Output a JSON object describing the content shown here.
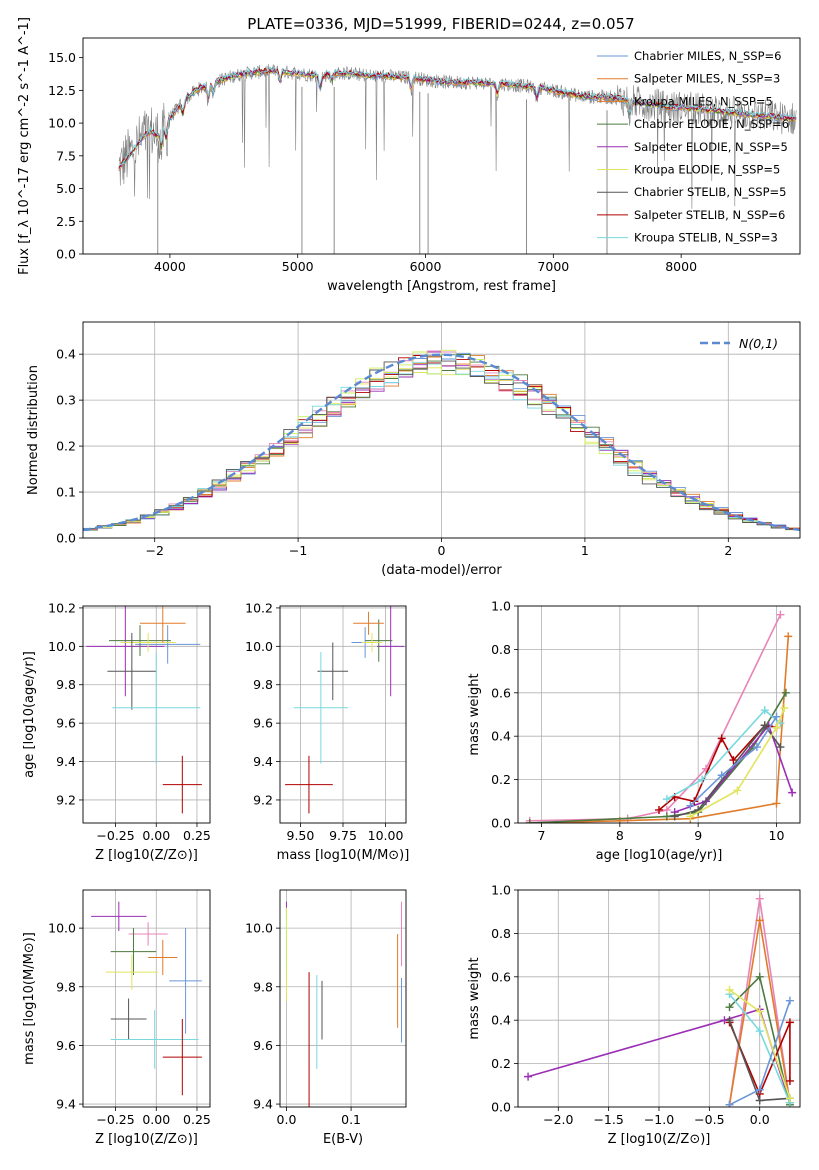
{
  "figure": {
    "title": "PLATE=0336, MJD=51999, FIBERID=0244, z=0.057"
  },
  "colors": {
    "c1": "#6a96d8",
    "c2": "#e07b2a",
    "c3": "#4b7a3e",
    "c4": "#9a2fb5",
    "c5": "#e2e45e",
    "c6": "#555555",
    "c7": "#b00000",
    "c8": "#79d8dd",
    "c9": "#e884b8",
    "c10": "#c8f05a",
    "grey": "#808080"
  },
  "chart_data": [
    {
      "id": "spectrum",
      "type": "line",
      "title": "PLATE=0336, MJD=51999, FIBERID=0244, z=0.057",
      "xlabel": "wavelength [Angstrom, rest frame]",
      "ylabel": "Flux [f_λ 10^-17 erg cm^-2 s^-1 A^-1]",
      "xlim": [
        3320,
        8930
      ],
      "ylim": [
        0,
        16.5
      ],
      "xticks": [
        "4000",
        "5000",
        "6000",
        "7000",
        "8000"
      ],
      "yticks": [
        "0.0",
        "2.5",
        "5.0",
        "7.5",
        "10.0",
        "12.5",
        "15.0"
      ],
      "continuum": {
        "x": [
          3600,
          3650,
          3700,
          3750,
          3800,
          3850,
          3900,
          3950,
          4000,
          4100,
          4200,
          4300,
          4400,
          4500,
          4600,
          4700,
          4800,
          4900,
          5000,
          5100,
          5200,
          5300,
          5400,
          5500,
          5600,
          5700,
          5800,
          5900,
          6000,
          6100,
          6200,
          6300,
          6400,
          6500,
          6600,
          6700,
          6800,
          6900,
          7000,
          7100,
          7200,
          7300,
          7400,
          7500,
          7600,
          7700,
          7800,
          7900,
          8000,
          8100,
          8200,
          8300,
          8400,
          8500,
          8600,
          8700,
          8800,
          8900
        ],
        "y": [
          6.5,
          7.2,
          7.8,
          8.4,
          9.0,
          9.4,
          9.0,
          9.8,
          10.4,
          11.6,
          12.5,
          12.9,
          13.3,
          13.6,
          13.8,
          13.9,
          14.0,
          13.9,
          13.8,
          13.7,
          13.6,
          13.8,
          13.8,
          13.7,
          13.6,
          13.6,
          13.5,
          13.5,
          13.3,
          13.2,
          13.1,
          13.1,
          13.1,
          13.0,
          13.0,
          12.9,
          12.8,
          12.7,
          12.5,
          12.3,
          12.1,
          12.0,
          12.0,
          11.9,
          11.7,
          11.5,
          11.4,
          11.2,
          11.2,
          11.1,
          11.0,
          10.9,
          10.8,
          10.7,
          10.6,
          10.5,
          10.4,
          10.3
        ]
      },
      "legend": [
        "Chabrier MILES, N_SSP=6",
        "Salpeter MILES, N_SSP=3",
        "Kroupa MILES, N_SSP=5",
        "Chabrier ELODIE, N_SSP=6",
        "Salpeter ELODIE, N_SSP=5",
        "Kroupa ELODIE, N_SSP=5",
        "Chabrier STELIB, N_SSP=5",
        "Salpeter STELIB, N_SSP=6",
        "Kroupa STELIB, N_SSP=3"
      ],
      "legend_colors": [
        "c1",
        "c2",
        "c2",
        "c3",
        "c4",
        "c5",
        "c6",
        "c7",
        "c8"
      ]
    },
    {
      "id": "residuals",
      "type": "line",
      "xlabel": "(data-model)/error",
      "ylabel": "Normed distribution",
      "xlim": [
        -2.5,
        2.5
      ],
      "ylim": [
        0,
        0.47
      ],
      "xticks": [
        "−2",
        "−1",
        "0",
        "1",
        "2"
      ],
      "yticks": [
        "0.0",
        "0.1",
        "0.2",
        "0.3",
        "0.4"
      ],
      "legend": "N(0,1)"
    },
    {
      "id": "age-vs-z",
      "type": "scatter",
      "xlabel": "Z [log10(Z/Z⊙)]",
      "ylabel": "age [log10(age/yr)]",
      "xlim": [
        -0.45,
        0.33
      ],
      "ylim": [
        9.08,
        10.21
      ],
      "xticks": [
        "−0.25",
        "0.00",
        "0.25"
      ],
      "yticks": [
        "9.2",
        "9.4",
        "9.6",
        "9.8",
        "10.0",
        "10.2"
      ],
      "points": [
        {
          "c": "c1",
          "x": 0.07,
          "y": 10.01,
          "xe": 0.2,
          "ye": 0.1
        },
        {
          "c": "c4",
          "x": -0.19,
          "y": 10.0,
          "xe": 0.24,
          "ye": 0.26
        },
        {
          "c": "c3",
          "x": -0.1,
          "y": 10.03,
          "xe": 0.19,
          "ye": 0.08
        },
        {
          "c": "c5",
          "x": -0.05,
          "y": 10.02,
          "xe": 0.17,
          "ye": 0.05
        },
        {
          "c": "c2",
          "x": 0.04,
          "y": 10.12,
          "xe": 0.14,
          "ye": 0.1
        },
        {
          "c": "c6",
          "x": -0.15,
          "y": 9.87,
          "xe": 0.15,
          "ye": 0.2
        },
        {
          "c": "c8",
          "x": 0.0,
          "y": 9.68,
          "xe": 0.27,
          "ye": 0.29
        },
        {
          "c": "c7",
          "x": 0.16,
          "y": 9.28,
          "xe": 0.12,
          "ye": 0.15
        }
      ]
    },
    {
      "id": "age-vs-mass",
      "type": "scatter",
      "xlabel": "mass [log10(M/M⊙)]",
      "ylabel": "",
      "xlim": [
        9.38,
        10.12
      ],
      "ylim": [
        9.08,
        10.21
      ],
      "xticks": [
        "9.50",
        "9.75",
        "10.00"
      ],
      "yticks": [
        "9.2",
        "9.4",
        "9.6",
        "9.8",
        "10.0",
        "10.2"
      ],
      "points": [
        {
          "c": "c1",
          "x": 9.88,
          "y": 10.02,
          "xe": 0.08,
          "ye": 0.08
        },
        {
          "c": "c4",
          "x": 10.03,
          "y": 10.0,
          "xe": 0.08,
          "ye": 0.26
        },
        {
          "c": "c3",
          "x": 9.96,
          "y": 10.03,
          "xe": 0.08,
          "ye": 0.11
        },
        {
          "c": "c5",
          "x": 9.92,
          "y": 10.02,
          "xe": 0.06,
          "ye": 0.05
        },
        {
          "c": "c2",
          "x": 9.9,
          "y": 10.12,
          "xe": 0.09,
          "ye": 0.06
        },
        {
          "c": "c6",
          "x": 9.69,
          "y": 9.87,
          "xe": 0.09,
          "ye": 0.15
        },
        {
          "c": "c8",
          "x": 9.62,
          "y": 9.68,
          "xe": 0.16,
          "ye": 0.29
        },
        {
          "c": "c7",
          "x": 9.55,
          "y": 9.28,
          "xe": 0.14,
          "ye": 0.15
        }
      ]
    },
    {
      "id": "weight-vs-age",
      "type": "line",
      "xlabel": "age [log10(age/yr)]",
      "ylabel": "mass weight",
      "xlim": [
        6.7,
        10.3
      ],
      "ylim": [
        0,
        1.0
      ],
      "xticks": [
        "7",
        "8",
        "9",
        "10"
      ],
      "yticks": [
        "0.0",
        "0.2",
        "0.4",
        "0.6",
        "0.8",
        "1.0"
      ],
      "series": [
        {
          "c": "c9",
          "x": [
            6.85,
            8.1,
            8.6,
            9.1,
            10.05
          ],
          "y": [
            0.01,
            0.02,
            0.06,
            0.25,
            0.96
          ]
        },
        {
          "c": "c2",
          "x": [
            6.85,
            8.0,
            8.9,
            10.0,
            10.15
          ],
          "y": [
            0.0,
            0.01,
            0.02,
            0.09,
            0.86
          ]
        },
        {
          "c": "c3",
          "x": [
            6.85,
            8.6,
            9.0,
            9.7,
            10.12
          ],
          "y": [
            0.0,
            0.03,
            0.05,
            0.35,
            0.6
          ]
        },
        {
          "c": "c4",
          "x": [
            8.7,
            9.1,
            9.9,
            10.2
          ],
          "y": [
            0.05,
            0.1,
            0.45,
            0.14
          ]
        },
        {
          "c": "c7",
          "x": [
            8.5,
            8.7,
            8.95,
            9.3,
            9.45,
            9.85,
            10.0
          ],
          "y": [
            0.06,
            0.12,
            0.1,
            0.39,
            0.29,
            0.45,
            0.44
          ]
        },
        {
          "c": "c6",
          "x": [
            8.7,
            9.0,
            9.85,
            10.05
          ],
          "y": [
            0.03,
            0.06,
            0.45,
            0.35
          ]
        },
        {
          "c": "c8",
          "x": [
            8.6,
            9.05,
            9.85,
            10.05
          ],
          "y": [
            0.11,
            0.2,
            0.52,
            0.46
          ]
        },
        {
          "c": "c1",
          "x": [
            8.9,
            9.3,
            9.75,
            10.0
          ],
          "y": [
            0.08,
            0.22,
            0.35,
            0.49
          ]
        },
        {
          "c": "c5",
          "x": [
            8.9,
            9.5,
            10.0,
            10.1
          ],
          "y": [
            0.03,
            0.15,
            0.44,
            0.53
          ]
        }
      ]
    },
    {
      "id": "mass-vs-z",
      "type": "scatter",
      "xlabel": "Z [log10(Z/Z⊙)]",
      "ylabel": "mass [log10(M/M⊙)]",
      "xlim": [
        -0.45,
        0.33
      ],
      "ylim": [
        9.39,
        10.13
      ],
      "xticks": [
        "−0.25",
        "0.00",
        "0.25"
      ],
      "yticks": [
        "9.4",
        "9.6",
        "9.8",
        "10.0"
      ],
      "points": [
        {
          "c": "c4",
          "x": -0.23,
          "y": 10.04,
          "xe": 0.17,
          "ye": 0.05
        },
        {
          "c": "c9",
          "x": -0.05,
          "y": 9.98,
          "xe": 0.12,
          "ye": 0.04
        },
        {
          "c": "c3",
          "x": -0.14,
          "y": 9.92,
          "xe": 0.14,
          "ye": 0.08
        },
        {
          "c": "c2",
          "x": 0.04,
          "y": 9.9,
          "xe": 0.09,
          "ye": 0.06
        },
        {
          "c": "c5",
          "x": -0.15,
          "y": 9.85,
          "xe": 0.16,
          "ye": 0.06
        },
        {
          "c": "c1",
          "x": 0.18,
          "y": 9.82,
          "xe": 0.1,
          "ye": 0.18
        },
        {
          "c": "c6",
          "x": -0.17,
          "y": 9.69,
          "xe": 0.11,
          "ye": 0.07
        },
        {
          "c": "c8",
          "x": -0.01,
          "y": 9.62,
          "xe": 0.27,
          "ye": 0.1
        },
        {
          "c": "c7",
          "x": 0.16,
          "y": 9.56,
          "xe": 0.12,
          "ye": 0.13
        }
      ]
    },
    {
      "id": "mass-vs-ebv",
      "type": "scatter",
      "xlabel": "E(B-V)",
      "ylabel": "",
      "xlim": [
        -0.01,
        0.185
      ],
      "ylim": [
        9.39,
        10.13
      ],
      "xticks": [
        "0.0",
        "0.1"
      ],
      "yticks": [
        "9.4",
        "9.6",
        "9.8",
        "10.0"
      ],
      "points": [
        {
          "c": "c4",
          "x": 0.0,
          "y": 10.07,
          "xe": 0.0,
          "ye": 0.02
        },
        {
          "c": "c5",
          "x": 0.0,
          "y": 9.91,
          "xe": 0.0,
          "ye": 0.16
        },
        {
          "c": "c10",
          "x": 0.0,
          "y": 9.95,
          "xe": 0.0,
          "ye": 0.11
        },
        {
          "c": "c9",
          "x": 0.178,
          "y": 9.98,
          "xe": 0.0,
          "ye": 0.11
        },
        {
          "c": "c2",
          "x": 0.172,
          "y": 9.82,
          "xe": 0.0,
          "ye": 0.16
        },
        {
          "c": "c1",
          "x": 0.178,
          "y": 9.72,
          "xe": 0.0,
          "ye": 0.11
        },
        {
          "c": "c6",
          "x": 0.055,
          "y": 9.72,
          "xe": 0.0,
          "ye": 0.1
        },
        {
          "c": "c8",
          "x": 0.047,
          "y": 9.68,
          "xe": 0.0,
          "ye": 0.16
        },
        {
          "c": "c7",
          "x": 0.035,
          "y": 9.61,
          "xe": 0.0,
          "ye": 0.24
        }
      ]
    },
    {
      "id": "weight-vs-z",
      "type": "line",
      "xlabel": "Z [log10(Z/Z⊙)]",
      "ylabel": "mass weight",
      "xlim": [
        -2.4,
        0.4
      ],
      "ylim": [
        0,
        1.0
      ],
      "xticks": [
        "−2.0",
        "−1.5",
        "−1.0",
        "−0.5",
        "0.0"
      ],
      "yticks": [
        "0.0",
        "0.2",
        "0.4",
        "0.6",
        "0.8",
        "1.0"
      ],
      "series": [
        {
          "c": "c4",
          "x": [
            -2.3,
            -0.35,
            0.0,
            0.3
          ],
          "y": [
            0.14,
            0.4,
            0.45,
            0.02
          ]
        },
        {
          "c": "c9",
          "x": [
            -0.3,
            0.0,
            0.3
          ],
          "y": [
            0.01,
            0.96,
            0.02
          ]
        },
        {
          "c": "c2",
          "x": [
            -0.3,
            0.0,
            0.3
          ],
          "y": [
            0.01,
            0.86,
            0.02
          ]
        },
        {
          "c": "c3",
          "x": [
            -0.3,
            0.0,
            0.3
          ],
          "y": [
            0.46,
            0.6,
            0.01
          ]
        },
        {
          "c": "c7",
          "x": [
            -0.3,
            0.0,
            0.3,
            0.3
          ],
          "y": [
            0.39,
            0.06,
            0.39,
            0.12
          ]
        },
        {
          "c": "c6",
          "x": [
            -0.3,
            0.0,
            0.3
          ],
          "y": [
            0.4,
            0.03,
            0.04
          ]
        },
        {
          "c": "c8",
          "x": [
            -0.3,
            0.0,
            0.3
          ],
          "y": [
            0.52,
            0.35,
            0.02
          ]
        },
        {
          "c": "c1",
          "x": [
            -0.3,
            0.0,
            0.3
          ],
          "y": [
            0.01,
            0.08,
            0.49
          ]
        },
        {
          "c": "c5",
          "x": [
            -0.3,
            0.0,
            0.3
          ],
          "y": [
            0.54,
            0.44,
            0.04
          ]
        }
      ]
    }
  ]
}
